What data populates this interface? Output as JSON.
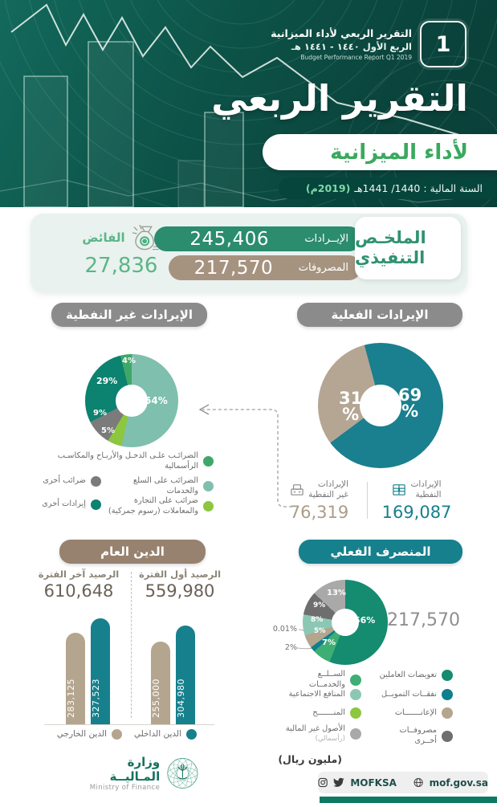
{
  "header": {
    "badge_line1": "التقرير الربعي لأداء الميزانية",
    "badge_line2": "الربع الأول ١٤٤٠ - ١٤٤١ هـ",
    "badge_line3": "Budget Performance Report Q1 2019",
    "badge_number": "1",
    "title": "التقرير الربعي",
    "subtitle": "لأداء الميزانية",
    "fiscal_label": "السنة المالية :  1440/ 1441هـ",
    "fiscal_year_g": "(2019م)"
  },
  "summary": {
    "title_l1": "الملخـص",
    "title_l2": "التنفيذي",
    "revenues_label": "الإيــرادات",
    "revenues_value": "245,406",
    "expenses_label": "المصروفات",
    "expenses_value": "217,570",
    "surplus_label": "الفائض",
    "surplus_value": "27,836"
  },
  "revenues_section": {
    "left_title": "الإيرادات غير النفطية",
    "right_title": "الإيرادات الفعلية",
    "oil_l1": "الإيرادات",
    "oil_l2": "النفطية",
    "oil_value": "169,087",
    "nonoil_l1": "الإيرادات",
    "nonoil_l2": "غير النفطية",
    "nonoil_value": "76,319"
  },
  "debt_section": {
    "title": "الدين العام",
    "end_label": "الرصيد آخر الفترة",
    "end_value": "610,648",
    "start_label": "الرصيد أول الفترة",
    "start_value": "559,980",
    "legend_internal": "الدين الداخلي",
    "legend_external": "الدين الخارجي"
  },
  "expenditure_section": {
    "title": "المنصرف الفعلي",
    "total": "217,570",
    "unit": "(مليون ريال)"
  },
  "footer": {
    "ministry_ar": "وزارة المـاليــة",
    "ministry_en": "Ministry of Finance",
    "handle": "MOFKSA",
    "website": "mof.gov.sa"
  },
  "chart_data": [
    {
      "type": "table",
      "title": "الملخص التنفيذي",
      "unit": "مليون ريال",
      "rows": [
        {
          "label": "الإيرادات",
          "value": 245406
        },
        {
          "label": "المصروفات",
          "value": 217570
        },
        {
          "label": "الفائض",
          "value": 27836
        }
      ]
    },
    {
      "type": "pie",
      "title": "الإيرادات غير النفطية",
      "legend_position": "bottom",
      "slices": [
        {
          "name": "الضرائـب علـى الدخـل والأربـاح والمكاسـب الرأسمالية",
          "value": 4,
          "label": "4%",
          "color": "#3fa868"
        },
        {
          "name": "الضرائب على السلع والخدمات",
          "value": 54,
          "label": "54%",
          "color": "#7fbfae"
        },
        {
          "name": "ضرائب على التجارة والمعاملات (رسوم جمركية)",
          "value": 5,
          "label": "5%",
          "color": "#8dc63f"
        },
        {
          "name": "ضرائب أخرى",
          "value": 9,
          "label": "9%",
          "color": "#7b7b7b"
        },
        {
          "name": "إيرادات أخرى",
          "value": 29,
          "label": "29%",
          "color": "#0c8270"
        }
      ]
    },
    {
      "type": "donut",
      "title": "الإيرادات الفعلية",
      "slices": [
        {
          "name": "الإيرادات النفطية",
          "value": 69,
          "label": "69",
          "unit": "%",
          "amount": "169,087",
          "color": "#1a7f8e"
        },
        {
          "name": "الإيرادات غير النفطية",
          "value": 31,
          "label": "31",
          "unit": "%",
          "amount": "76,319",
          "color": "#b4a693"
        }
      ]
    },
    {
      "type": "bar",
      "title": "الدين العام",
      "unit": "مليون ريال",
      "ylim": [
        0,
        327523
      ],
      "groups": [
        {
          "name": "الرصيد آخر الفترة",
          "total": 610648,
          "bars": [
            {
              "name": "الدين الخارجي",
              "value": 283125,
              "label": "283,125",
              "color": "#b4a58f"
            },
            {
              "name": "الدين الداخلي",
              "value": 327523,
              "label": "327,523",
              "color": "#17808d"
            }
          ]
        },
        {
          "name": "الرصيد أول الفترة",
          "total": 559980,
          "bars": [
            {
              "name": "الدين الخارجي",
              "value": 255000,
              "label": "255,000",
              "color": "#b4a58f"
            },
            {
              "name": "الدين الداخلي",
              "value": 304980,
              "label": "304,980",
              "color": "#17808d"
            }
          ]
        }
      ]
    },
    {
      "type": "donut",
      "title": "المنصرف الفعلي",
      "total": 217570,
      "unit": "مليون ريال",
      "slices": [
        {
          "name": "تعويضات العاملين",
          "value": 56,
          "label": "56%",
          "color": "#158b70"
        },
        {
          "name": "الســلــع والخدمــات",
          "value": 7,
          "label": "7%",
          "color": "#3fae74"
        },
        {
          "name": "نفقــات التمويــل",
          "value": 2,
          "label": "2%",
          "color": "#0f7f8e"
        },
        {
          "name": "المنـــــــح",
          "value": 0.01,
          "label": "0.01%",
          "color": "#8dc63f"
        },
        {
          "name": "الإعانـــــــات",
          "value": 5,
          "label": "5%",
          "color": "#b4a58f"
        },
        {
          "name": "المنافع الاجتماعية",
          "value": 8,
          "label": "8%",
          "color": "#8cc7b5"
        },
        {
          "name": "مصروفــات أخــرى",
          "value": 9,
          "label": "9%",
          "color": "#6e6e6e"
        },
        {
          "name": "الأصول غير المالية",
          "sub": "(رأسمالي)",
          "value": 13,
          "label": "13%",
          "color": "#a9a9a9"
        }
      ]
    }
  ]
}
